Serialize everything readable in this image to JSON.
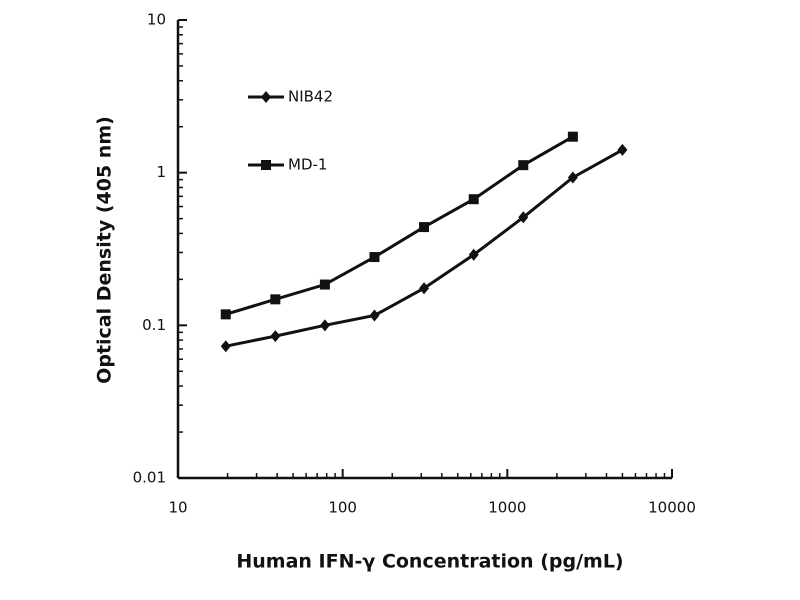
{
  "chart_data": {
    "type": "line",
    "xlabel": "Human IFN-γ Concentration (pg/mL)",
    "ylabel": "Optical Density (405 nm)",
    "x": [
      19.5,
      39,
      78,
      156,
      312,
      625,
      1250,
      2500,
      5000
    ],
    "series": [
      {
        "name": "NIB42",
        "color": "#111111",
        "marker": "diamond",
        "values": [
          0.073,
          0.085,
          0.1,
          0.116,
          0.175,
          0.29,
          0.51,
          0.93,
          1.41
        ]
      },
      {
        "name": "MD-1",
        "color": "#111111",
        "marker": "square",
        "values": [
          0.118,
          0.148,
          0.185,
          0.28,
          0.44,
          0.67,
          1.12,
          1.72,
          null
        ]
      }
    ],
    "xlim": [
      10,
      10000
    ],
    "ylim": [
      0.01,
      10
    ],
    "xticks": [
      10,
      100,
      1000,
      10000
    ],
    "yticks": [
      0.01,
      0.1,
      1,
      10
    ],
    "xscale": "log",
    "yscale": "log",
    "grid": false,
    "legend": "upper left"
  }
}
